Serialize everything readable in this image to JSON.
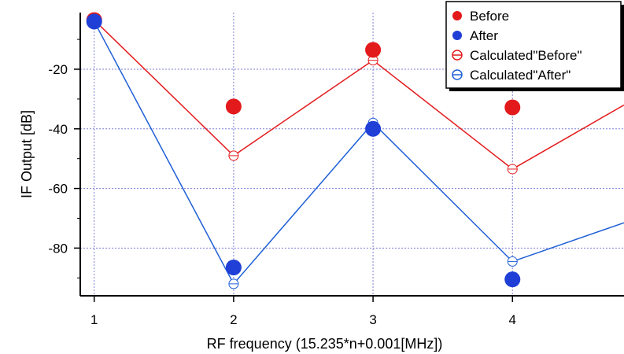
{
  "chart_data": {
    "type": "line",
    "xlabel": "RF frequency (15.235*n+0.001[MHz])",
    "ylabel": "IF Output [dB]",
    "xlim": [
      0.9,
      4.8
    ],
    "ylim": [
      -96,
      -1
    ],
    "x_ticks": [
      1,
      2,
      3,
      4
    ],
    "y_ticks": [
      -20,
      -40,
      -60,
      -80
    ],
    "grid": true,
    "legend_position": "top-right",
    "series": [
      {
        "name": "Before",
        "style": "filled-marker",
        "color": "#e31a1c",
        "x": [
          1,
          2,
          3,
          4
        ],
        "y": [
          -3.5,
          -32.5,
          -13.5,
          -32.8
        ]
      },
      {
        "name": "After",
        "style": "filled-marker",
        "color": "#1f3fd6",
        "x": [
          1,
          2,
          3,
          4
        ],
        "y": [
          -4.0,
          -86.5,
          -40.0,
          -90.5
        ]
      },
      {
        "name": "Calculated\"Before\"",
        "style": "line-open-marker",
        "color": "#e31a1c",
        "x": [
          1,
          2,
          3,
          4,
          4.8
        ],
        "y": [
          -3.5,
          -49.0,
          -17.0,
          -53.5,
          -32.0
        ]
      },
      {
        "name": "Calculated\"After\"",
        "style": "line-open-marker",
        "color": "#1f5fd6",
        "x": [
          1,
          2,
          3,
          4,
          4.8
        ],
        "y": [
          -4.0,
          -92.0,
          -38.0,
          -84.5,
          -71.5
        ]
      }
    ]
  }
}
